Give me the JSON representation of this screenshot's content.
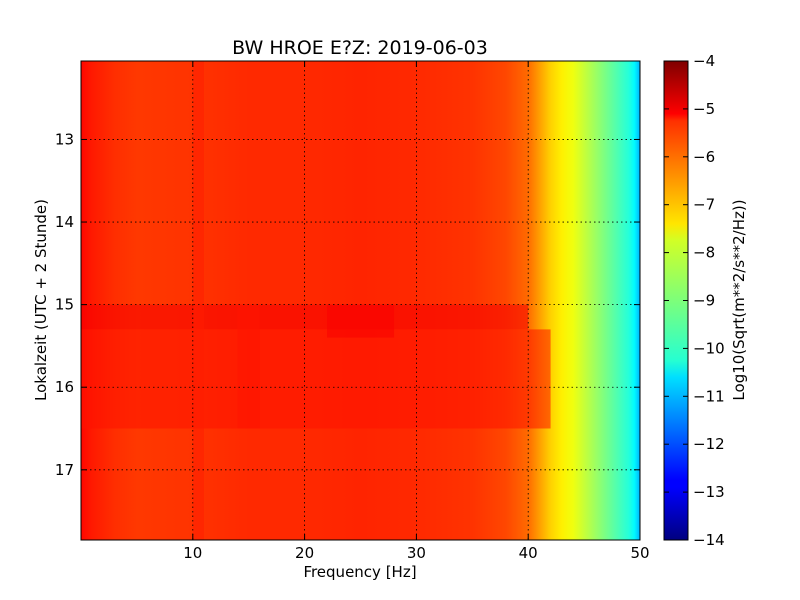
{
  "chart_data": {
    "type": "heatmap",
    "title": "BW HROE E?Z: 2019-06-03",
    "xlabel": "Frequency [Hz]",
    "ylabel": "Lokalzeit (UTC + 2 Stunde)",
    "xlim": [
      0,
      50
    ],
    "ylim": [
      17.85,
      12.05
    ],
    "y_inverted": true,
    "x_ticks": [
      10,
      20,
      30,
      40,
      50
    ],
    "x_tick_labels": [
      "10",
      "20",
      "30",
      "40",
      "50"
    ],
    "y_ticks": [
      13,
      14,
      15,
      16,
      17
    ],
    "y_tick_labels": [
      "13",
      "14",
      "15",
      "16",
      "17"
    ],
    "grid": true,
    "colormap": "jet",
    "colorbar": {
      "label": "Log10(Sqrt(m**2/s**2/Hz))",
      "range": [
        -14,
        -4
      ],
      "ticks": [
        -4,
        -5,
        -6,
        -7,
        -8,
        -9,
        -10,
        -11,
        -12,
        -13,
        -14
      ],
      "tick_labels": [
        "−4",
        "−5",
        "−6",
        "−7",
        "−8",
        "−9",
        "−10",
        "−11",
        "−12",
        "−13",
        "−14"
      ]
    },
    "frequency_profile": {
      "frequency_hz": [
        0,
        1,
        3,
        5,
        10,
        15,
        20,
        25,
        30,
        35,
        38,
        40,
        41,
        42,
        43,
        44,
        45,
        46,
        47,
        48,
        49,
        49.5,
        50
      ],
      "log10_amplitude": [
        -5.3,
        -5.5,
        -5.7,
        -5.8,
        -5.75,
        -5.65,
        -5.65,
        -5.6,
        -5.65,
        -5.75,
        -5.95,
        -6.3,
        -6.8,
        -7.3,
        -7.6,
        -7.9,
        -8.3,
        -8.7,
        -9.1,
        -9.5,
        -9.9,
        -10.3,
        -11.0
      ]
    },
    "time_features": [
      {
        "time_start": 15.0,
        "time_end": 15.3,
        "freq_start": 0,
        "freq_end": 40,
        "offset": 0.5
      },
      {
        "time_start": 15.3,
        "time_end": 16.5,
        "freq_start": 0,
        "freq_end": 42,
        "offset": 0.2
      },
      {
        "time_start": 12.05,
        "time_end": 17.85,
        "freq_start": 10,
        "freq_end": 11,
        "offset": 0.2
      },
      {
        "time_start": 15.0,
        "time_end": 16.5,
        "freq_start": 14,
        "freq_end": 16,
        "offset": 0.2
      },
      {
        "time_start": 15.0,
        "time_end": 15.4,
        "freq_start": 22,
        "freq_end": 28,
        "offset": 0.4
      }
    ]
  },
  "colors": {
    "background": "#ffffff",
    "grid": "#000000",
    "axis": "#000000"
  }
}
